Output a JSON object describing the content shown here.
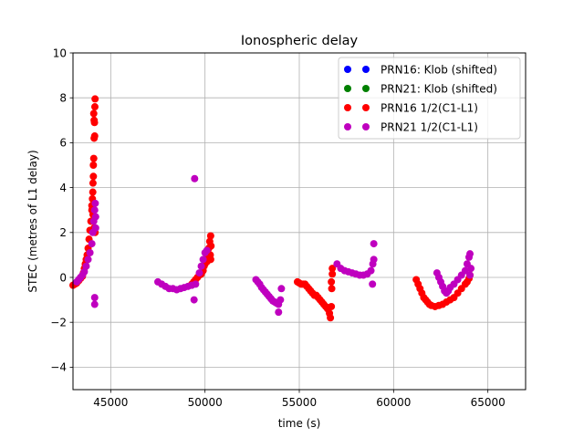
{
  "chart_data": {
    "type": "scatter",
    "title": "Ionospheric delay",
    "xlabel": "time (s)",
    "ylabel": "STEC (metres of L1 delay)",
    "xlim": [
      43000,
      67000
    ],
    "ylim": [
      -5,
      10
    ],
    "xticks": [
      45000,
      50000,
      55000,
      60000,
      65000
    ],
    "yticks": [
      -4,
      -2,
      0,
      2,
      4,
      6,
      8,
      10
    ],
    "grid": true,
    "legend_position": "top-right",
    "series": [
      {
        "name": "PRN16: Klob (shifted)",
        "color": "#0000ff",
        "points": []
      },
      {
        "name": "PRN21: Klob (shifted)",
        "color": "#008000",
        "points": []
      },
      {
        "name": "PRN16 1/2(C1-L1)",
        "color": "#ff0000",
        "points": [
          [
            43000,
            -0.35
          ],
          [
            43100,
            -0.3
          ],
          [
            43200,
            -0.25
          ],
          [
            43300,
            -0.15
          ],
          [
            43400,
            -0.05
          ],
          [
            43500,
            0.05
          ],
          [
            43550,
            0.2
          ],
          [
            43600,
            0.4
          ],
          [
            43650,
            0.6
          ],
          [
            43700,
            0.8
          ],
          [
            43750,
            1.0
          ],
          [
            43800,
            1.3
          ],
          [
            43850,
            1.7
          ],
          [
            43900,
            2.1
          ],
          [
            43950,
            2.5
          ],
          [
            44000,
            3.0
          ],
          [
            44050,
            3.8
          ],
          [
            44080,
            4.5
          ],
          [
            44100,
            5.3
          ],
          [
            44120,
            6.2
          ],
          [
            44140,
            6.9
          ],
          [
            44160,
            7.6
          ],
          [
            44170,
            7.95
          ],
          [
            44100,
            7.3
          ],
          [
            44120,
            7.0
          ],
          [
            44150,
            6.3
          ],
          [
            44080,
            5.0
          ],
          [
            44060,
            4.2
          ],
          [
            44030,
            3.5
          ],
          [
            44000,
            3.2
          ],
          [
            44060,
            2.8
          ],
          [
            44120,
            2.2
          ],
          [
            44170,
            2.0
          ],
          [
            49300,
            -0.3
          ],
          [
            49400,
            -0.2
          ],
          [
            49500,
            -0.1
          ],
          [
            49600,
            0.0
          ],
          [
            49700,
            0.1
          ],
          [
            49800,
            0.15
          ],
          [
            49900,
            0.3
          ],
          [
            49950,
            0.5
          ],
          [
            50000,
            0.6
          ],
          [
            50050,
            0.75
          ],
          [
            50100,
            0.9
          ],
          [
            50150,
            1.1
          ],
          [
            50200,
            1.3
          ],
          [
            50250,
            1.6
          ],
          [
            50300,
            1.85
          ],
          [
            50320,
            1.4
          ],
          [
            50280,
            1.0
          ],
          [
            50250,
            0.8
          ],
          [
            50200,
            0.9
          ],
          [
            50100,
            0.7
          ],
          [
            50300,
            0.8
          ],
          [
            54900,
            -0.2
          ],
          [
            55000,
            -0.25
          ],
          [
            55100,
            -0.3
          ],
          [
            55200,
            -0.3
          ],
          [
            55300,
            -0.3
          ],
          [
            55400,
            -0.4
          ],
          [
            55500,
            -0.5
          ],
          [
            55600,
            -0.6
          ],
          [
            55700,
            -0.7
          ],
          [
            55800,
            -0.8
          ],
          [
            55900,
            -0.8
          ],
          [
            56000,
            -0.9
          ],
          [
            56100,
            -1.0
          ],
          [
            56200,
            -1.1
          ],
          [
            56300,
            -1.2
          ],
          [
            56400,
            -1.3
          ],
          [
            56500,
            -1.4
          ],
          [
            56600,
            -1.6
          ],
          [
            56650,
            -1.8
          ],
          [
            56700,
            -1.3
          ],
          [
            56720,
            -0.5
          ],
          [
            56750,
            0.15
          ],
          [
            56750,
            0.4
          ],
          [
            56700,
            -0.2
          ],
          [
            61200,
            -0.1
          ],
          [
            61300,
            -0.3
          ],
          [
            61400,
            -0.5
          ],
          [
            61500,
            -0.7
          ],
          [
            61600,
            -0.9
          ],
          [
            61700,
            -1.0
          ],
          [
            61800,
            -1.1
          ],
          [
            61900,
            -1.2
          ],
          [
            62000,
            -1.25
          ],
          [
            62200,
            -1.3
          ],
          [
            62400,
            -1.25
          ],
          [
            62600,
            -1.2
          ],
          [
            62800,
            -1.1
          ],
          [
            63000,
            -1.0
          ],
          [
            63200,
            -0.9
          ],
          [
            63400,
            -0.7
          ],
          [
            63600,
            -0.5
          ],
          [
            63800,
            -0.3
          ],
          [
            63900,
            -0.2
          ],
          [
            64000,
            -0.05
          ],
          [
            64050,
            0.1
          ]
        ]
      },
      {
        "name": "PRN21 1/2(C1-L1)",
        "color": "#bf00bf",
        "points": [
          [
            43200,
            -0.2
          ],
          [
            43300,
            -0.1
          ],
          [
            43400,
            0.0
          ],
          [
            43500,
            0.1
          ],
          [
            43600,
            0.25
          ],
          [
            43700,
            0.5
          ],
          [
            43800,
            0.8
          ],
          [
            43900,
            1.1
          ],
          [
            44000,
            1.5
          ],
          [
            44050,
            2.0
          ],
          [
            44100,
            2.5
          ],
          [
            44150,
            3.0
          ],
          [
            44180,
            3.3
          ],
          [
            44200,
            2.7
          ],
          [
            44150,
            -0.9
          ],
          [
            44150,
            -1.2
          ],
          [
            44200,
            2.2
          ],
          [
            47500,
            -0.2
          ],
          [
            47700,
            -0.3
          ],
          [
            47900,
            -0.4
          ],
          [
            48100,
            -0.5
          ],
          [
            48300,
            -0.5
          ],
          [
            48500,
            -0.55
          ],
          [
            48700,
            -0.5
          ],
          [
            48900,
            -0.45
          ],
          [
            49100,
            -0.4
          ],
          [
            49300,
            -0.35
          ],
          [
            49500,
            -0.3
          ],
          [
            49450,
            4.4
          ],
          [
            49420,
            -1.0
          ],
          [
            49700,
            0.2
          ],
          [
            49800,
            0.5
          ],
          [
            49900,
            0.8
          ],
          [
            50000,
            1.1
          ],
          [
            50100,
            1.2
          ],
          [
            52700,
            -0.1
          ],
          [
            52800,
            -0.2
          ],
          [
            52900,
            -0.3
          ],
          [
            53000,
            -0.45
          ],
          [
            53100,
            -0.55
          ],
          [
            53200,
            -0.65
          ],
          [
            53300,
            -0.75
          ],
          [
            53400,
            -0.85
          ],
          [
            53500,
            -0.95
          ],
          [
            53600,
            -1.05
          ],
          [
            53700,
            -1.1
          ],
          [
            53800,
            -1.15
          ],
          [
            53900,
            -1.2
          ],
          [
            54000,
            -1.0
          ],
          [
            54050,
            -0.5
          ],
          [
            53900,
            -1.55
          ],
          [
            57000,
            0.6
          ],
          [
            57200,
            0.4
          ],
          [
            57400,
            0.3
          ],
          [
            57600,
            0.25
          ],
          [
            57800,
            0.2
          ],
          [
            58000,
            0.15
          ],
          [
            58200,
            0.1
          ],
          [
            58400,
            0.1
          ],
          [
            58600,
            0.15
          ],
          [
            58800,
            0.3
          ],
          [
            58900,
            0.6
          ],
          [
            58950,
            0.8
          ],
          [
            58950,
            1.5
          ],
          [
            58880,
            -0.3
          ],
          [
            62300,
            0.2
          ],
          [
            62400,
            0.0
          ],
          [
            62500,
            -0.2
          ],
          [
            62600,
            -0.4
          ],
          [
            62700,
            -0.6
          ],
          [
            62800,
            -0.7
          ],
          [
            62900,
            -0.6
          ],
          [
            63000,
            -0.45
          ],
          [
            63200,
            -0.3
          ],
          [
            63400,
            -0.1
          ],
          [
            63600,
            0.1
          ],
          [
            63800,
            0.3
          ],
          [
            63900,
            0.6
          ],
          [
            64000,
            0.9
          ],
          [
            64050,
            1.05
          ],
          [
            64100,
            0.4
          ],
          [
            64050,
            0.1
          ]
        ]
      }
    ]
  }
}
